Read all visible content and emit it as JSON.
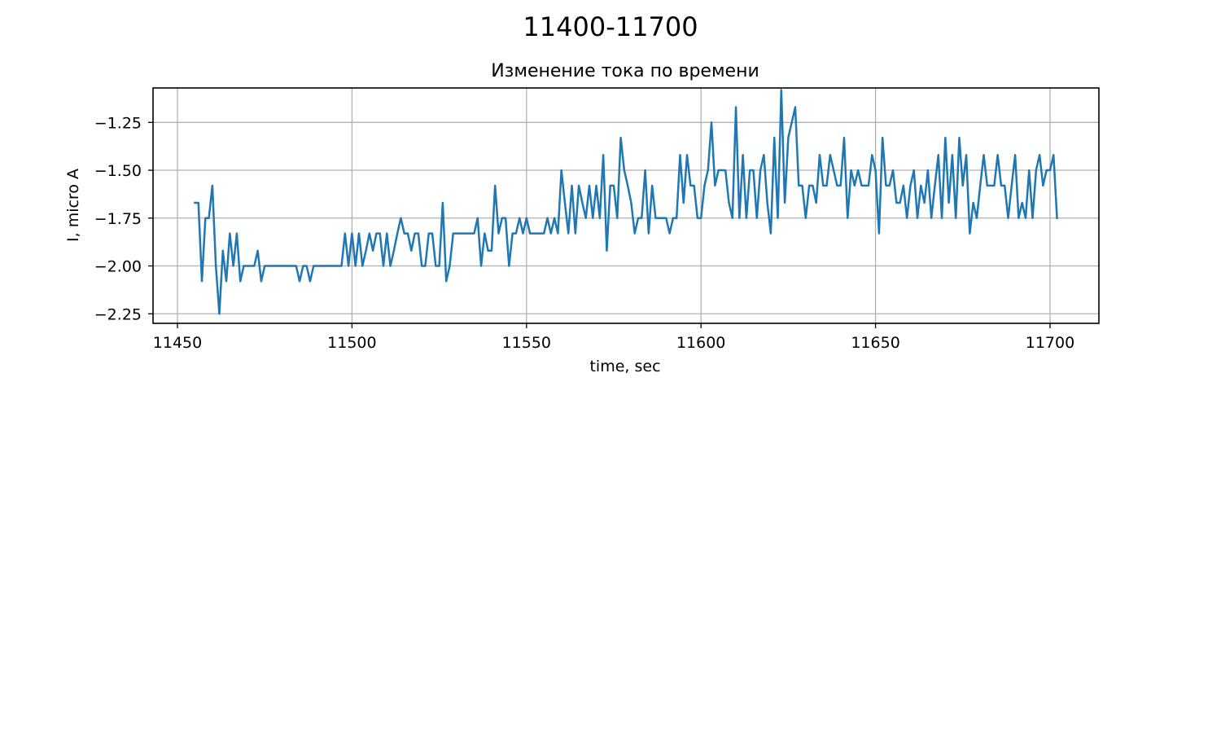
{
  "figure": {
    "suptitle": "11400-11700"
  },
  "chart_data": {
    "type": "line",
    "title": "Изменение тока по времени",
    "xlabel": "time, sec",
    "ylabel": "I, micro A",
    "xlim": [
      11443,
      11714
    ],
    "ylim": [
      -2.3,
      -1.07
    ],
    "grid": true,
    "xticks": [
      11450,
      11500,
      11550,
      11600,
      11650,
      11700
    ],
    "xtick_labels": [
      "11450",
      "11500",
      "11550",
      "11600",
      "11650",
      "11700"
    ],
    "yticks": [
      -2.25,
      -2.0,
      -1.75,
      -1.5,
      -1.25
    ],
    "ytick_labels": [
      "−2.25",
      "−2.00",
      "−1.75",
      "−1.50",
      "−1.25"
    ],
    "series": [
      {
        "color": "#1f77b4",
        "x": [
          11455,
          11456,
          11457,
          11458,
          11459,
          11460,
          11461,
          11462,
          11463,
          11464,
          11465,
          11466,
          11467,
          11468,
          11469,
          11470,
          11471,
          11472,
          11473,
          11474,
          11475,
          11476,
          11477,
          11478,
          11479,
          11480,
          11481,
          11482,
          11483,
          11484,
          11485,
          11486,
          11487,
          11488,
          11489,
          11490,
          11491,
          11492,
          11493,
          11494,
          11495,
          11496,
          11497,
          11498,
          11499,
          11500,
          11501,
          11502,
          11503,
          11504,
          11505,
          11506,
          11507,
          11508,
          11509,
          11510,
          11511,
          11512,
          11513,
          11514,
          11515,
          11516,
          11517,
          11518,
          11519,
          11520,
          11521,
          11522,
          11523,
          11524,
          11525,
          11526,
          11527,
          11528,
          11529,
          11530,
          11531,
          11532,
          11533,
          11534,
          11535,
          11536,
          11537,
          11538,
          11539,
          11540,
          11541,
          11542,
          11543,
          11544,
          11545,
          11546,
          11547,
          11548,
          11549,
          11550,
          11551,
          11552,
          11553,
          11554,
          11555,
          11556,
          11557,
          11558,
          11559,
          11560,
          11561,
          11562,
          11563,
          11564,
          11565,
          11566,
          11567,
          11568,
          11569,
          11570,
          11571,
          11572,
          11573,
          11574,
          11575,
          11576,
          11577,
          11578,
          11579,
          11580,
          11581,
          11582,
          11583,
          11584,
          11585,
          11586,
          11587,
          11588,
          11589,
          11590,
          11591,
          11592,
          11593,
          11594,
          11595,
          11596,
          11597,
          11598,
          11599,
          11600,
          11601,
          11602,
          11603,
          11604,
          11605,
          11606,
          11607,
          11608,
          11609,
          11610,
          11611,
          11612,
          11613,
          11614,
          11615,
          11616,
          11617,
          11618,
          11619,
          11620,
          11621,
          11622,
          11623,
          11624,
          11625,
          11626,
          11627,
          11628,
          11629,
          11630,
          11631,
          11632,
          11633,
          11634,
          11635,
          11636,
          11637,
          11638,
          11639,
          11640,
          11641,
          11642,
          11643,
          11644,
          11645,
          11646,
          11647,
          11648,
          11649,
          11650,
          11651,
          11652,
          11653,
          11654,
          11655,
          11656,
          11657,
          11658,
          11659,
          11660,
          11661,
          11662,
          11663,
          11664,
          11665,
          11666,
          11667,
          11668,
          11669,
          11670,
          11671,
          11672,
          11673,
          11674,
          11675,
          11676,
          11677,
          11678,
          11679,
          11680,
          11681,
          11682,
          11683,
          11684,
          11685,
          11686,
          11687,
          11688,
          11689,
          11690,
          11691,
          11692,
          11693,
          11694,
          11695,
          11696,
          11697,
          11698,
          11699,
          11700,
          11701,
          11702
        ],
        "y": [
          -1.67,
          -1.67,
          -2.08,
          -1.75,
          -1.75,
          -1.58,
          -2.0,
          -2.25,
          -1.92,
          -2.08,
          -1.83,
          -2.0,
          -1.83,
          -2.08,
          -2.0,
          -2.0,
          -2.0,
          -2.0,
          -1.92,
          -2.08,
          -2.0,
          -2.0,
          -2.0,
          -2.0,
          -2.0,
          -2.0,
          -2.0,
          -2.0,
          -2.0,
          -2.0,
          -2.08,
          -2.0,
          -2.0,
          -2.08,
          -2.0,
          -2.0,
          -2.0,
          -2.0,
          -2.0,
          -2.0,
          -2.0,
          -2.0,
          -2.0,
          -1.83,
          -2.0,
          -1.83,
          -2.0,
          -1.83,
          -2.0,
          -1.92,
          -1.83,
          -1.92,
          -1.83,
          -1.83,
          -2.0,
          -1.83,
          -2.0,
          -1.92,
          -1.83,
          -1.75,
          -1.83,
          -1.83,
          -1.92,
          -1.83,
          -1.83,
          -2.0,
          -2.0,
          -1.83,
          -1.83,
          -2.0,
          -2.0,
          -1.67,
          -2.08,
          -2.0,
          -1.83,
          -1.83,
          -1.83,
          -1.83,
          -1.83,
          -1.83,
          -1.83,
          -1.75,
          -2.0,
          -1.83,
          -1.92,
          -1.92,
          -1.58,
          -1.83,
          -1.75,
          -1.75,
          -2.0,
          -1.83,
          -1.83,
          -1.75,
          -1.83,
          -1.75,
          -1.83,
          -1.83,
          -1.83,
          -1.83,
          -1.83,
          -1.75,
          -1.83,
          -1.75,
          -1.83,
          -1.5,
          -1.67,
          -1.83,
          -1.58,
          -1.83,
          -1.58,
          -1.67,
          -1.75,
          -1.58,
          -1.75,
          -1.58,
          -1.75,
          -1.42,
          -1.92,
          -1.58,
          -1.58,
          -1.75,
          -1.33,
          -1.5,
          -1.58,
          -1.67,
          -1.83,
          -1.75,
          -1.75,
          -1.5,
          -1.83,
          -1.58,
          -1.75,
          -1.75,
          -1.75,
          -1.75,
          -1.83,
          -1.75,
          -1.75,
          -1.42,
          -1.67,
          -1.42,
          -1.58,
          -1.58,
          -1.75,
          -1.75,
          -1.58,
          -1.5,
          -1.25,
          -1.58,
          -1.5,
          -1.5,
          -1.5,
          -1.67,
          -1.75,
          -1.17,
          -1.75,
          -1.42,
          -1.75,
          -1.5,
          -1.5,
          -1.75,
          -1.5,
          -1.42,
          -1.67,
          -1.83,
          -1.33,
          -1.75,
          -1.08,
          -1.67,
          -1.33,
          -1.25,
          -1.17,
          -1.58,
          -1.58,
          -1.75,
          -1.58,
          -1.58,
          -1.67,
          -1.42,
          -1.58,
          -1.58,
          -1.42,
          -1.5,
          -1.58,
          -1.58,
          -1.33,
          -1.75,
          -1.5,
          -1.58,
          -1.5,
          -1.58,
          -1.58,
          -1.58,
          -1.42,
          -1.5,
          -1.83,
          -1.33,
          -1.58,
          -1.58,
          -1.5,
          -1.67,
          -1.67,
          -1.58,
          -1.75,
          -1.58,
          -1.5,
          -1.75,
          -1.58,
          -1.67,
          -1.5,
          -1.75,
          -1.58,
          -1.42,
          -1.75,
          -1.33,
          -1.67,
          -1.42,
          -1.75,
          -1.33,
          -1.58,
          -1.42,
          -1.83,
          -1.67,
          -1.75,
          -1.58,
          -1.42,
          -1.58,
          -1.58,
          -1.58,
          -1.42,
          -1.58,
          -1.58,
          -1.75,
          -1.58,
          -1.42,
          -1.75,
          -1.67,
          -1.75,
          -1.5,
          -1.75,
          -1.5,
          -1.42,
          -1.58,
          -1.5,
          -1.5,
          -1.42,
          -1.75
        ]
      }
    ]
  }
}
